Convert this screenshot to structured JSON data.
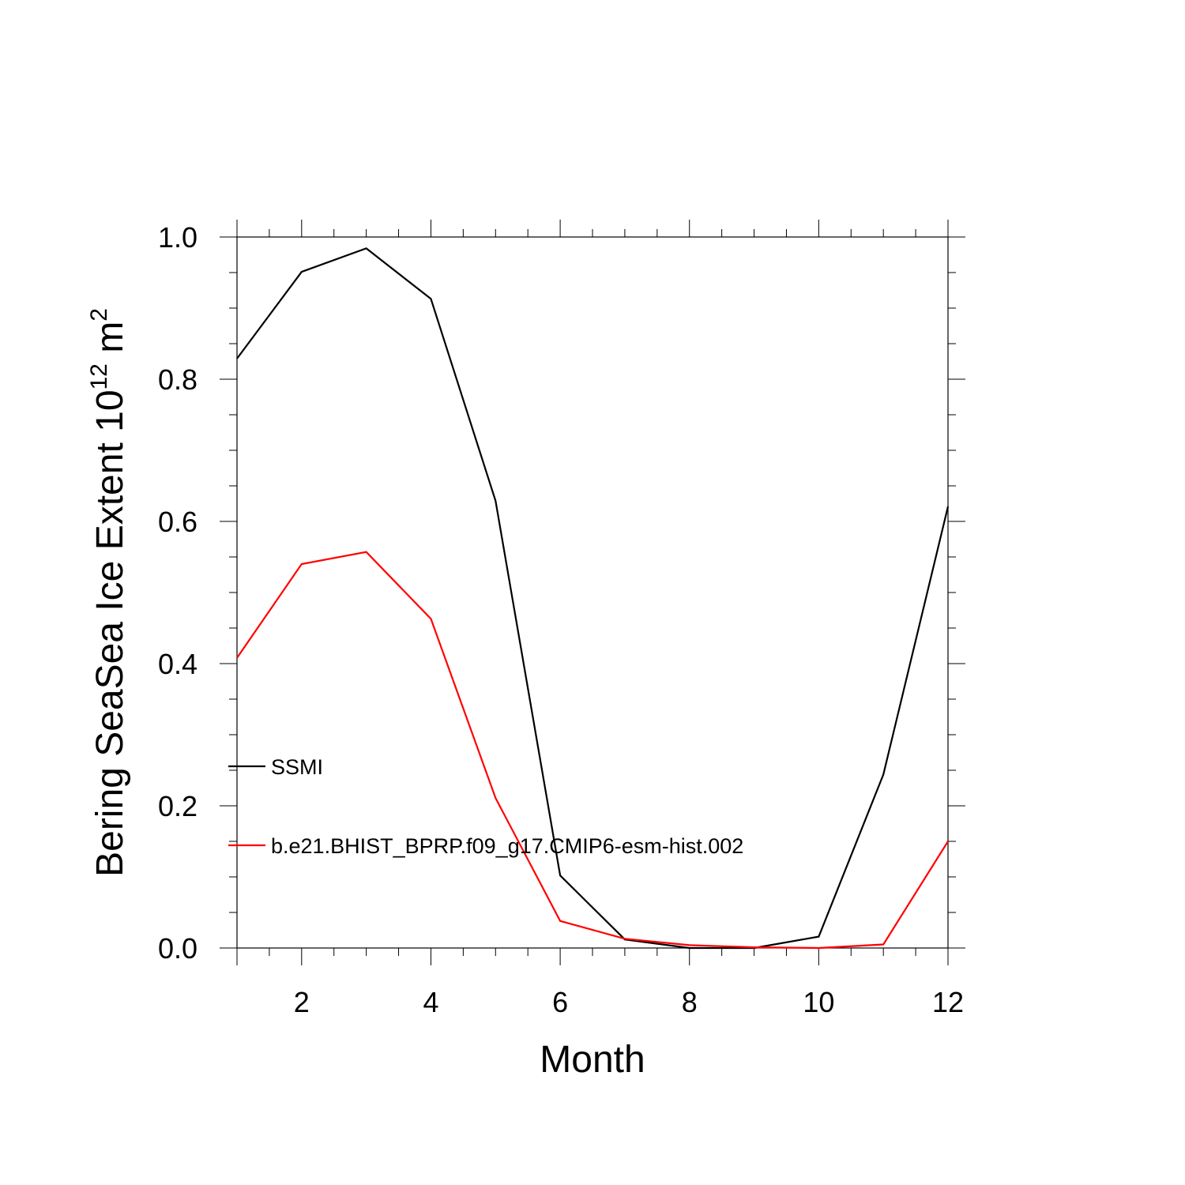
{
  "chart_data": {
    "type": "line",
    "xlabel": "Month",
    "ylabel": {
      "base": "Bering SeaSea Ice Extent 10",
      "exp1": "12",
      "unit": " m",
      "exp2": "2"
    },
    "xlim": [
      1,
      12
    ],
    "ylim": [
      0,
      1.0
    ],
    "xticks": [
      2,
      4,
      6,
      8,
      10,
      12
    ],
    "xtick_labels": [
      "2",
      "4",
      "6",
      "8",
      "10",
      "12"
    ],
    "yticks": [
      0,
      0.2,
      0.4,
      0.6,
      0.8,
      1.0
    ],
    "ytick_labels": [
      "0.0",
      "0.2",
      "0.4",
      "0.6",
      "0.8",
      "1.0"
    ],
    "x_minor_step": 0.5,
    "y_minor_step": 0.05,
    "grid": false,
    "legend_placement": "left-lower",
    "x": [
      1,
      2,
      3,
      4,
      5,
      6,
      7,
      8,
      9,
      10,
      11,
      12
    ],
    "series": [
      {
        "name": "SSMI",
        "color": "#000000",
        "values": [
          0.829,
          0.951,
          0.984,
          0.913,
          0.629,
          0.102,
          0.012,
          0.0,
          0.0,
          0.016,
          0.244,
          0.621
        ]
      },
      {
        "name": "b.e21.BHIST_BPRP.f09_g17.CMIP6-esm-hist.002",
        "color": "#ff0000",
        "values": [
          0.408,
          0.54,
          0.557,
          0.463,
          0.211,
          0.038,
          0.013,
          0.004,
          0.001,
          0.0,
          0.005,
          0.15
        ]
      }
    ]
  }
}
